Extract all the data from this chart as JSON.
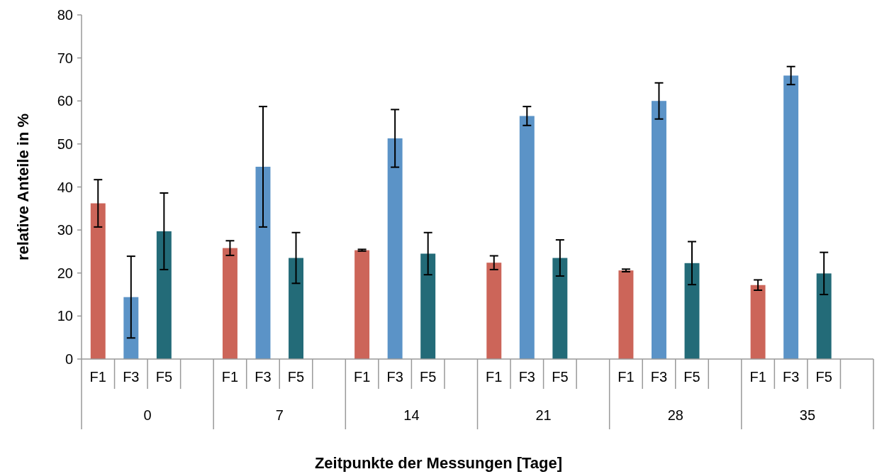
{
  "chart_data": {
    "type": "bar",
    "xlabel": "Zeitpunkte der Messungen [Tage]",
    "ylabel": "relative Anteile in %",
    "categories": [
      "0",
      "7",
      "14",
      "21",
      "28",
      "35"
    ],
    "series": [
      {
        "name": "F1",
        "color": "#cc6559",
        "values": [
          36.2,
          25.8,
          25.3,
          22.4,
          20.6,
          17.2
        ],
        "errors": [
          5.5,
          1.7,
          0.2,
          1.6,
          0.3,
          1.2
        ]
      },
      {
        "name": "F3",
        "color": "#5b93c7",
        "values": [
          14.4,
          44.7,
          51.3,
          56.5,
          60.0,
          65.9
        ],
        "errors": [
          9.5,
          14,
          6.7,
          2.2,
          4.2,
          2.1
        ]
      },
      {
        "name": "F5",
        "color": "#236b78",
        "values": [
          29.7,
          23.5,
          24.5,
          23.5,
          22.3,
          19.9
        ],
        "errors": [
          8.9,
          5.9,
          4.9,
          4.2,
          5,
          4.9
        ]
      }
    ],
    "ylim": [
      0,
      80
    ],
    "yticks": [
      0,
      10,
      20,
      30,
      40,
      50,
      60,
      70,
      80
    ],
    "grid": false
  }
}
